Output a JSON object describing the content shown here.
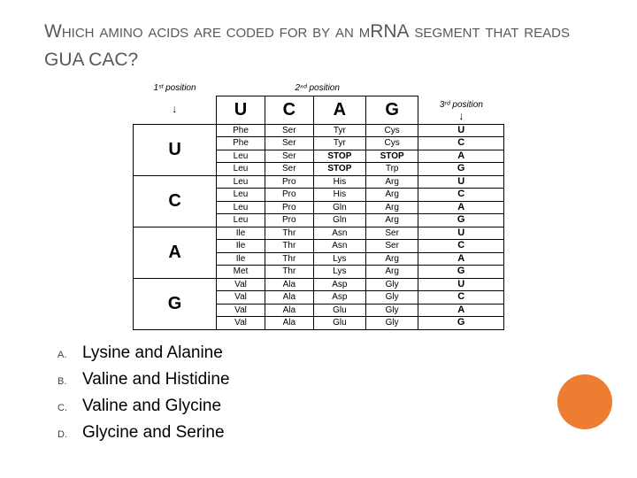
{
  "title_part1": "Which amino acids are coded for by an m",
  "title_part2": "RNA",
  "title_part3": "segment that reads",
  "title_part4": "GUA CAC?",
  "table": {
    "hdr_pos1": "1ˢᵗ position",
    "hdr_pos2": "2ⁿᵈ position",
    "hdr_pos3": "3ʳᵈ position",
    "bases": [
      "U",
      "C",
      "A",
      "G"
    ],
    "third": [
      "U",
      "C",
      "A",
      "G",
      "U",
      "C",
      "A",
      "G",
      "U",
      "C",
      "A",
      "G",
      "U",
      "C",
      "A",
      "G"
    ],
    "cells": {
      "U": {
        "U": [
          "Phe",
          "Phe",
          "Leu",
          "Leu"
        ],
        "C": [
          "Ser",
          "Ser",
          "Ser",
          "Ser"
        ],
        "A": [
          "Tyr",
          "Tyr",
          "STOP",
          "STOP"
        ],
        "G": [
          "Cys",
          "Cys",
          "STOP",
          "Trp"
        ]
      },
      "C": {
        "U": [
          "Leu",
          "Leu",
          "Leu",
          "Leu"
        ],
        "C": [
          "Pro",
          "Pro",
          "Pro",
          "Pro"
        ],
        "A": [
          "His",
          "His",
          "Gln",
          "Gln"
        ],
        "G": [
          "Arg",
          "Arg",
          "Arg",
          "Arg"
        ]
      },
      "A": {
        "U": [
          "Ile",
          "Ile",
          "Ile",
          "Met"
        ],
        "C": [
          "Thr",
          "Thr",
          "Thr",
          "Thr"
        ],
        "A": [
          "Asn",
          "Asn",
          "Lys",
          "Lys"
        ],
        "G": [
          "Ser",
          "Ser",
          "Arg",
          "Arg"
        ]
      },
      "G": {
        "U": [
          "Val",
          "Val",
          "Val",
          "Val"
        ],
        "C": [
          "Ala",
          "Ala",
          "Ala",
          "Ala"
        ],
        "A": [
          "Asp",
          "Asp",
          "Glu",
          "Glu"
        ],
        "G": [
          "Gly",
          "Gly",
          "Gly",
          "Gly"
        ]
      }
    }
  },
  "answers": [
    {
      "letter": "A.",
      "text": "Lysine and Alanine"
    },
    {
      "letter": "B.",
      "text": "Valine and Histidine"
    },
    {
      "letter": "C.",
      "text": "Valine and Glycine"
    },
    {
      "letter": "D.",
      "text": "Glycine and Serine"
    }
  ],
  "colors": {
    "circle": "#ed7d31"
  }
}
